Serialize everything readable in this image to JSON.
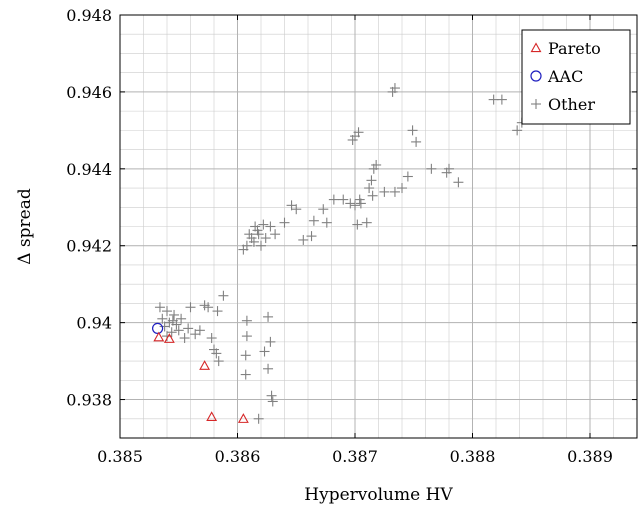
{
  "chart_data": {
    "type": "scatter",
    "xlabel": "Hypervolume HV",
    "ylabel": "Δ spread",
    "xlim": [
      0.385,
      0.3894
    ],
    "ylim": [
      0.937,
      0.948
    ],
    "x_ticks": [
      0.385,
      0.386,
      0.387,
      0.388,
      0.389
    ],
    "x_tick_labels": [
      "0.385",
      "0.386",
      "0.387",
      "0.388",
      "0.389"
    ],
    "y_ticks": [
      0.938,
      0.94,
      0.942,
      0.944,
      0.946,
      0.948
    ],
    "y_tick_labels": [
      "0.938",
      "0.94",
      "0.942",
      "0.944",
      "0.946",
      "0.948"
    ],
    "grid": true,
    "minor_grid": true,
    "legend_position": "top-right",
    "series": [
      {
        "name": "Pareto",
        "marker": "triangle",
        "color": "#d62728",
        "points": [
          [
            0.38533,
            0.93962
          ],
          [
            0.38542,
            0.93958
          ],
          [
            0.38572,
            0.93888
          ],
          [
            0.38578,
            0.93755
          ],
          [
            0.38605,
            0.9375
          ]
        ]
      },
      {
        "name": "AAC",
        "marker": "circle",
        "color": "#1f1fbf",
        "points": [
          [
            0.38532,
            0.93985
          ]
        ]
      },
      {
        "name": "Other",
        "marker": "plus",
        "color": "#808080",
        "points": [
          [
            0.38534,
            0.9404
          ],
          [
            0.38536,
            0.9401
          ],
          [
            0.38538,
            0.9399
          ],
          [
            0.3854,
            0.9403
          ],
          [
            0.38542,
            0.94
          ],
          [
            0.38544,
            0.93975
          ],
          [
            0.38546,
            0.9402
          ],
          [
            0.38548,
            0.93995
          ],
          [
            0.3854,
            0.93965
          ],
          [
            0.38545,
            0.94005
          ],
          [
            0.3855,
            0.9398
          ],
          [
            0.38552,
            0.9401
          ],
          [
            0.38555,
            0.9396
          ],
          [
            0.38558,
            0.93985
          ],
          [
            0.3856,
            0.9404
          ],
          [
            0.38564,
            0.9397
          ],
          [
            0.38568,
            0.9398
          ],
          [
            0.38572,
            0.94045
          ],
          [
            0.38575,
            0.9404
          ],
          [
            0.38578,
            0.9396
          ],
          [
            0.3858,
            0.9393
          ],
          [
            0.38582,
            0.9392
          ],
          [
            0.38584,
            0.939
          ],
          [
            0.38583,
            0.9403
          ],
          [
            0.38588,
            0.9407
          ],
          [
            0.38607,
            0.93865
          ],
          [
            0.38607,
            0.93915
          ],
          [
            0.38608,
            0.93965
          ],
          [
            0.38608,
            0.94005
          ],
          [
            0.38623,
            0.93925
          ],
          [
            0.38626,
            0.94015
          ],
          [
            0.38626,
            0.9388
          ],
          [
            0.38628,
            0.9395
          ],
          [
            0.38629,
            0.9381
          ],
          [
            0.3863,
            0.93795
          ],
          [
            0.38618,
            0.9375
          ],
          [
            0.38605,
            0.9419
          ],
          [
            0.38608,
            0.942
          ],
          [
            0.3861,
            0.9423
          ],
          [
            0.38612,
            0.9422
          ],
          [
            0.38614,
            0.9421
          ],
          [
            0.38615,
            0.9425
          ],
          [
            0.38617,
            0.9424
          ],
          [
            0.38618,
            0.9423
          ],
          [
            0.3862,
            0.942
          ],
          [
            0.38622,
            0.94255
          ],
          [
            0.38624,
            0.9422
          ],
          [
            0.38628,
            0.9425
          ],
          [
            0.38632,
            0.9423
          ],
          [
            0.3864,
            0.9426
          ],
          [
            0.38646,
            0.94305
          ],
          [
            0.3865,
            0.94295
          ],
          [
            0.38656,
            0.94215
          ],
          [
            0.38663,
            0.94225
          ],
          [
            0.38665,
            0.94265
          ],
          [
            0.38673,
            0.94295
          ],
          [
            0.38676,
            0.9426
          ],
          [
            0.38682,
            0.9432
          ],
          [
            0.3869,
            0.9432
          ],
          [
            0.38696,
            0.9431
          ],
          [
            0.38702,
            0.94255
          ],
          [
            0.38705,
            0.9431
          ],
          [
            0.3871,
            0.9426
          ],
          [
            0.38712,
            0.9435
          ],
          [
            0.38715,
            0.9433
          ],
          [
            0.38714,
            0.9437
          ],
          [
            0.38716,
            0.944
          ],
          [
            0.38718,
            0.9441
          ],
          [
            0.38725,
            0.9434
          ],
          [
            0.38734,
            0.9434
          ],
          [
            0.3874,
            0.9435
          ],
          [
            0.38745,
            0.9438
          ],
          [
            0.38749,
            0.945
          ],
          [
            0.38752,
            0.9447
          ],
          [
            0.38698,
            0.94475
          ],
          [
            0.387,
            0.94485
          ],
          [
            0.38703,
            0.94495
          ],
          [
            0.387,
            0.94305
          ],
          [
            0.38704,
            0.9432
          ],
          [
            0.38732,
            0.946
          ],
          [
            0.38734,
            0.9461
          ],
          [
            0.38765,
            0.944
          ],
          [
            0.38778,
            0.9439
          ],
          [
            0.3878,
            0.944
          ],
          [
            0.38788,
            0.94365
          ],
          [
            0.38818,
            0.9458
          ],
          [
            0.38825,
            0.9458
          ],
          [
            0.38838,
            0.945
          ],
          [
            0.38842,
            0.9452
          ]
        ]
      }
    ]
  },
  "colors": {
    "grid": "#cccccc",
    "axis": "#000000",
    "background": "#ffffff"
  }
}
